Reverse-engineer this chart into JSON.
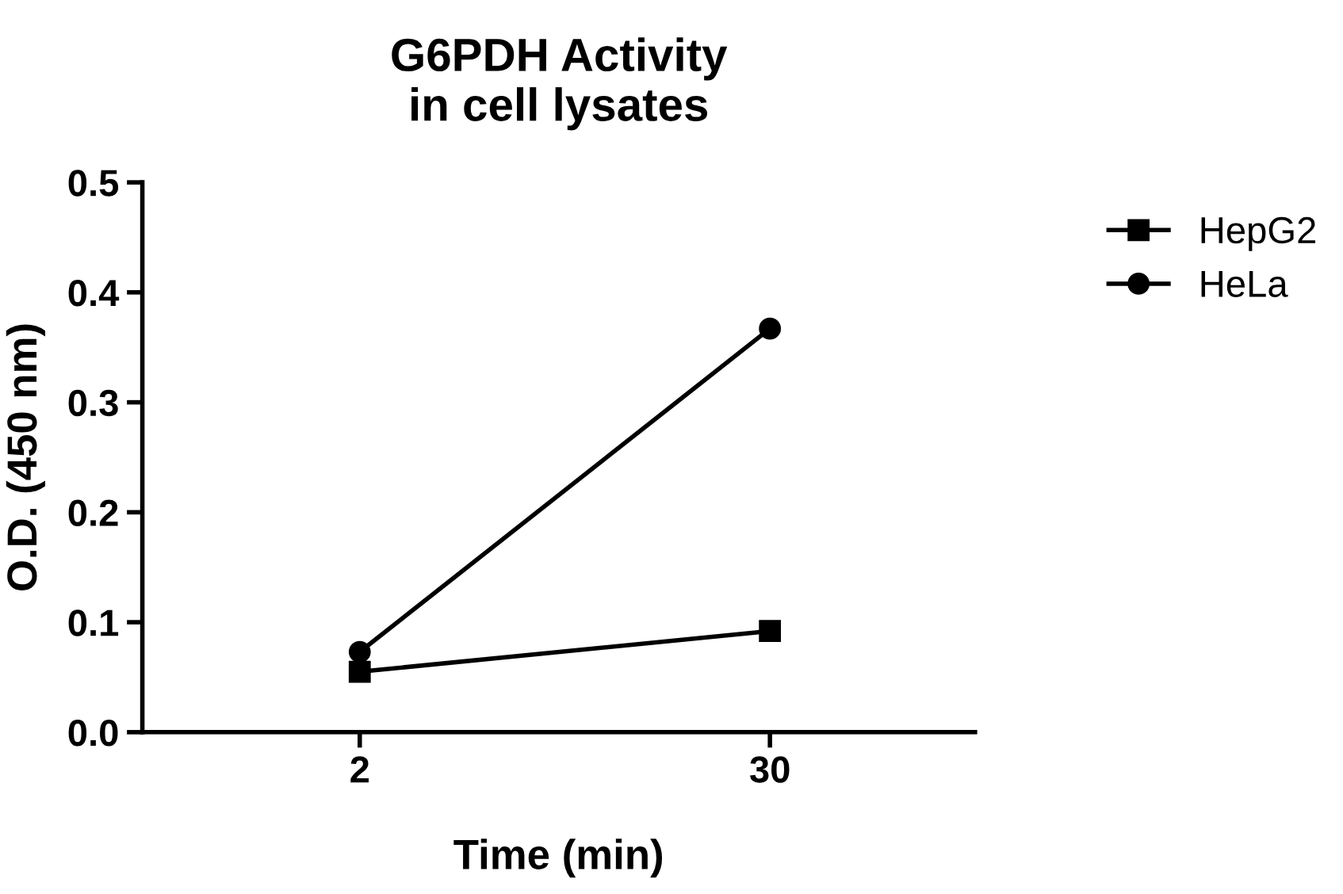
{
  "chart_data": {
    "type": "line",
    "title": "G6PDH Activity\nin cell lysates",
    "xlabel": "Time (min)",
    "ylabel": "O.D. (450 nm)",
    "categories": [
      "2",
      "30"
    ],
    "series": [
      {
        "name": "HepG2",
        "color": "#000000",
        "values": [
          0.055,
          0.092
        ],
        "marker": "square"
      },
      {
        "name": "HeLa",
        "color": "#000000",
        "values": [
          0.073,
          0.367
        ],
        "marker": "circle"
      }
    ],
    "ylim": [
      0,
      0.5
    ],
    "yticks": [
      {
        "value": 0,
        "label": "0.0"
      },
      {
        "value": 0.1,
        "label": "0.1"
      },
      {
        "value": 0.2,
        "label": "0.2"
      },
      {
        "value": 0.3,
        "label": "0.3"
      },
      {
        "value": 0.4,
        "label": "0.4"
      },
      {
        "value": 0.5,
        "label": "0.5"
      }
    ],
    "grid": false,
    "legend": "top right",
    "line_style": "solid"
  }
}
